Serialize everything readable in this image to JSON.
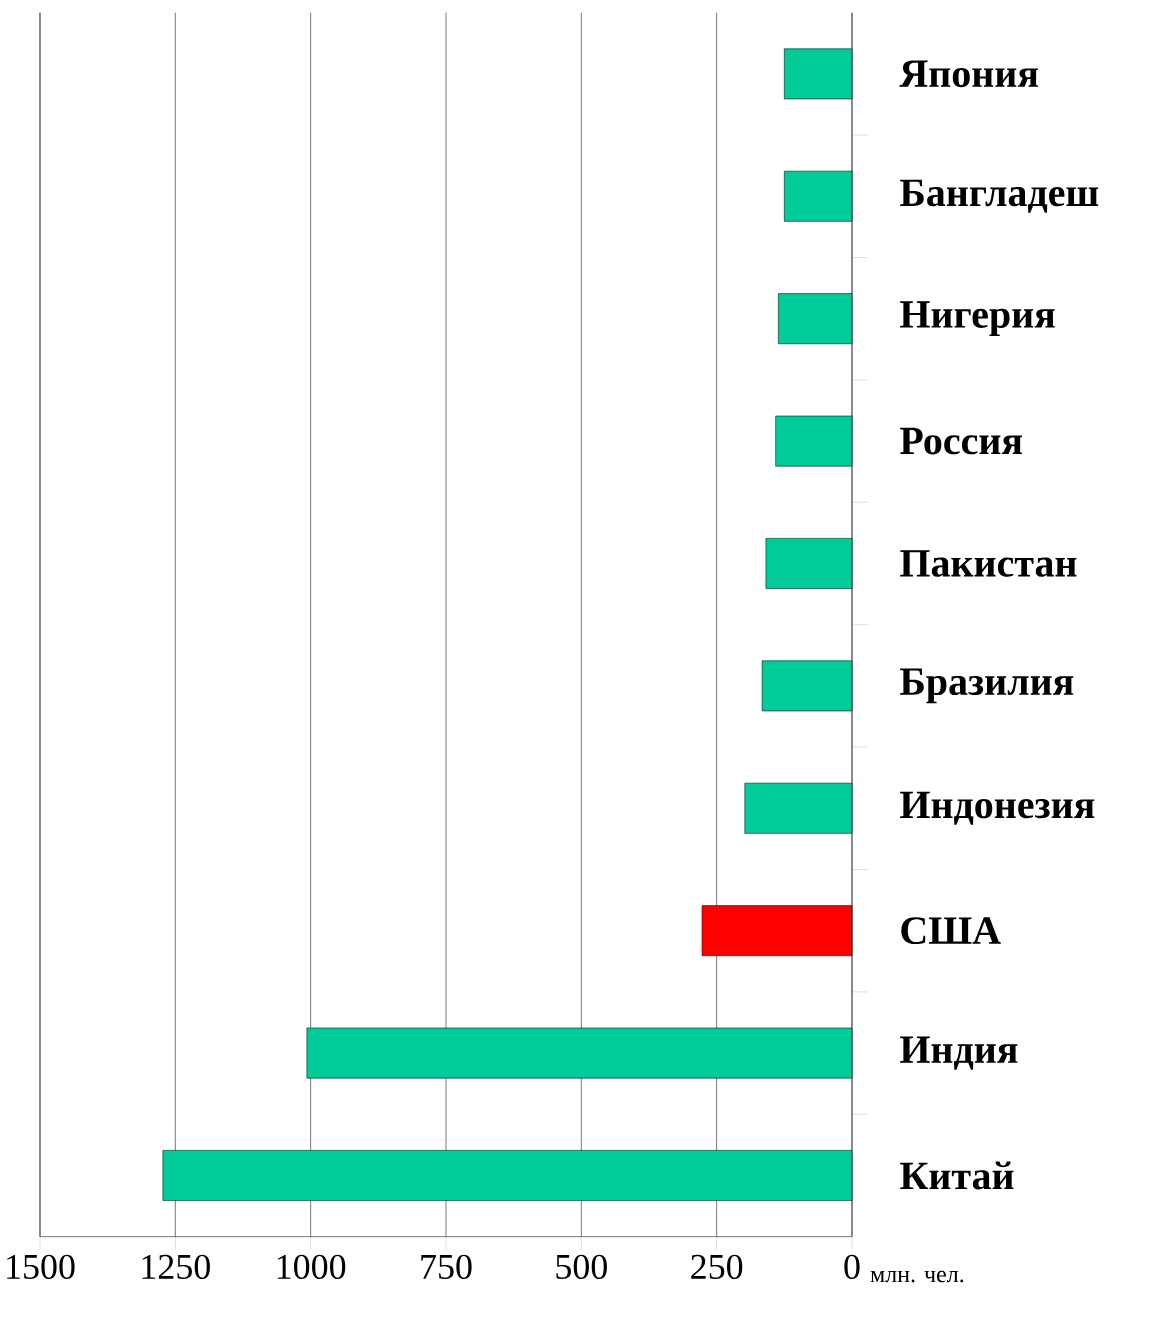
{
  "chart_data": {
    "type": "bar",
    "orientation": "horizontal",
    "xlabel": "млн. чел.",
    "categories": [
      "Япония",
      "Бангладеш",
      "Нигерия",
      "Россия",
      "Пакистан",
      "Бразилия",
      "Индонезия",
      "США",
      "Индия",
      "Китай"
    ],
    "values": [
      125,
      125,
      136,
      141,
      159,
      166,
      198,
      277,
      1007,
      1273
    ],
    "colors": [
      "#00cc99",
      "#00cc99",
      "#00cc99",
      "#00cc99",
      "#00cc99",
      "#00cc99",
      "#00cc99",
      "#ff0000",
      "#00cc99",
      "#00cc99"
    ],
    "xlim": [
      1500,
      0
    ],
    "xticks": [
      1500,
      1250,
      1000,
      750,
      500,
      250,
      0
    ],
    "grid": "x"
  }
}
